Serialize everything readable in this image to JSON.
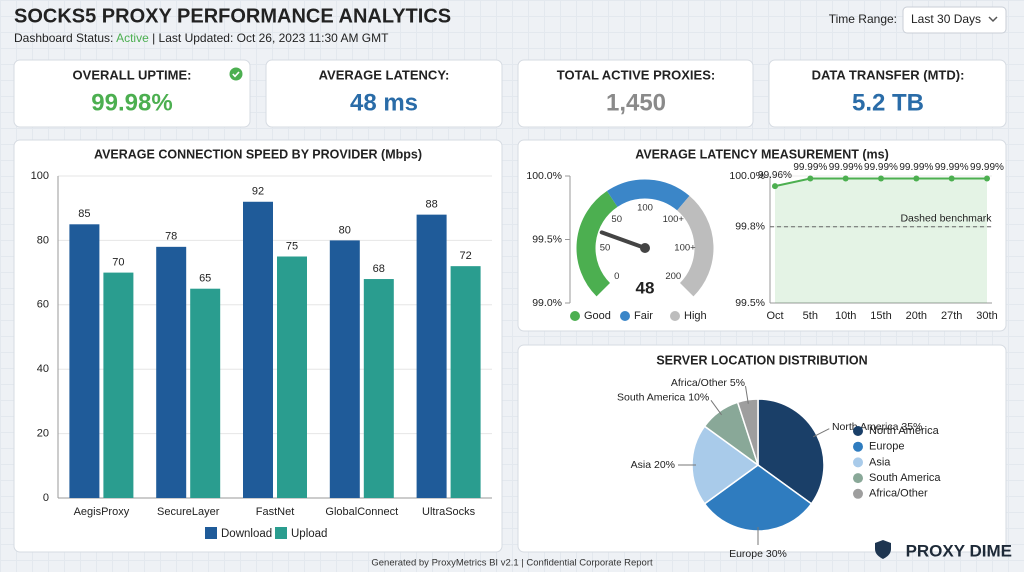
{
  "header": {
    "title": "SOCKS5 PROXY PERFORMANCE ANALYTICS",
    "status_label": "Dashboard Status:",
    "status": "Active",
    "updated": "| Last Updated: Oct 26, 2023 11:30 AM GMT",
    "time_range_label": "Time Range:",
    "time_range": "Last 30 Days"
  },
  "kpis": [
    {
      "label": "OVERALL UPTIME:",
      "value": "99.98%",
      "color": "#4caf50"
    },
    {
      "label": "AVERAGE LATENCY:",
      "value": "48 ms",
      "color": "#2a6ca8"
    },
    {
      "label": "TOTAL ACTIVE PROXIES:",
      "value": "1,450",
      "color": "#8a8a8a"
    },
    {
      "label": "DATA TRANSFER (MTD):",
      "value": "5.2 TB",
      "color": "#2a6ca8"
    }
  ],
  "chart_data": [
    {
      "type": "bar",
      "title": "AVERAGE CONNECTION SPEED BY PROVIDER (Mbps)",
      "categories": [
        "AegisProxy",
        "SecureLayer",
        "FastNet",
        "GlobalConnect",
        "UltraSocks"
      ],
      "series": [
        {
          "name": "Download",
          "color": "#1f5b99",
          "values": [
            85,
            78,
            92,
            80,
            88
          ]
        },
        {
          "name": "Upload",
          "color": "#2a9d8f",
          "values": [
            70,
            65,
            75,
            68,
            72
          ]
        }
      ],
      "ylim": [
        0,
        100
      ],
      "yticks": [
        0,
        20,
        40,
        60,
        80,
        100
      ],
      "grid": true,
      "show_values": true,
      "legend": "bottom"
    },
    {
      "type": "gauge",
      "title": "AVERAGE LATENCY MEASUREMENT (ms)",
      "value": 48,
      "gauge_range": [
        0,
        200
      ],
      "tick_labels": [
        "0",
        "50",
        "50",
        "100",
        "100+",
        "100+",
        "200"
      ],
      "bands": [
        {
          "name": "Good",
          "color": "#4caf50",
          "range": [
            0,
            75
          ]
        },
        {
          "name": "Fair",
          "color": "#3b86c8",
          "range": [
            75,
            130
          ]
        },
        {
          "name": "High",
          "color": "#bdbdbd",
          "range": [
            130,
            200
          ]
        }
      ],
      "ylim": [
        99,
        100
      ],
      "yticks": [
        {
          "value": 99,
          "label": "99.0%"
        },
        {
          "value": 99.5,
          "label": "99.5%"
        },
        {
          "value": 100,
          "label": "100.0%"
        }
      ],
      "legend": "bottom"
    },
    {
      "type": "line",
      "categories": [
        "Oct",
        "5th",
        "10th",
        "15th",
        "20th",
        "27th",
        "30th"
      ],
      "values": [
        99.96,
        99.99,
        99.99,
        99.99,
        99.99,
        99.99,
        99.99
      ],
      "value_labels": [
        "99.96%",
        "99.99%",
        "99.99%",
        "99.99%",
        "99.99%",
        "99.99%",
        "99.99%"
      ],
      "color": "#4caf50",
      "area": true,
      "benchmark": 99.8,
      "annotation": "Dashed benchmark",
      "ylim": [
        99.5,
        100
      ],
      "yticks": [
        {
          "value": 99.5,
          "label": "99.5%"
        },
        {
          "value": 99.8,
          "label": "99.8%"
        },
        {
          "value": 100,
          "label": "100.0%"
        }
      ],
      "grid": true
    },
    {
      "type": "pie",
      "title": "SERVER LOCATION DISTRIBUTION",
      "categories": [
        "North America",
        "Europe",
        "Asia",
        "South America",
        "Africa/Other"
      ],
      "values": [
        35,
        30,
        20,
        10,
        5
      ],
      "value_labels": [
        "North America 35%",
        "Europe 30%",
        "Asia 20%",
        "South America 10%",
        "Africa/Other 5%"
      ],
      "colors": [
        "#1a3f68",
        "#2f7cbf",
        "#a9cbea",
        "#89a898",
        "#9e9e9e"
      ],
      "legend": "right"
    }
  ],
  "footer": "Generated by ProxyMetrics BI v2.1 | Confidential Corporate Report",
  "watermark": "PROXY DIME"
}
